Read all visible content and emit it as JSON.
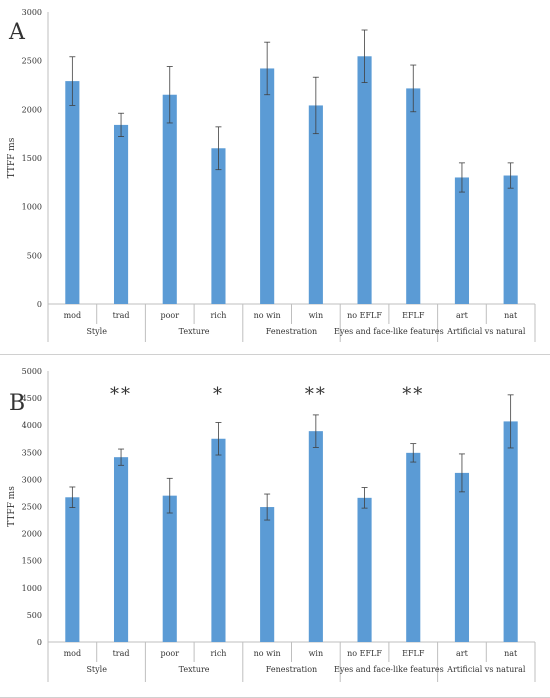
{
  "chart_data": [
    {
      "panel_label": "A",
      "type": "bar",
      "ylabel": "TTFF ms",
      "ylim": [
        0,
        3000
      ],
      "yticks": [
        0,
        500,
        1000,
        1500,
        2000,
        2500,
        3000
      ],
      "categories": [
        "mod",
        "trad",
        "poor",
        "rich",
        "no win",
        "win",
        "no EFLF",
        "EFLF",
        "art",
        "nat"
      ],
      "groups": [
        "Style",
        "Texture",
        "Fenestration",
        "Eyes and face-like features",
        "Artificial vs natural"
      ],
      "values": [
        2290,
        1840,
        2150,
        1600,
        2420,
        2040,
        2545,
        2215,
        1300,
        1320
      ],
      "errors": [
        250,
        120,
        290,
        220,
        270,
        290,
        270,
        240,
        150,
        130
      ],
      "annotations": [
        "",
        "",
        "",
        "",
        "",
        "",
        "",
        "",
        "",
        ""
      ],
      "bar_color": "#5b9bd5",
      "grid": false
    },
    {
      "panel_label": "B",
      "type": "bar",
      "ylabel": "TTFF ms",
      "ylim": [
        0,
        5000
      ],
      "yticks": [
        0,
        500,
        1000,
        1500,
        2000,
        2500,
        3000,
        3500,
        4000,
        4500,
        5000
      ],
      "categories": [
        "mod",
        "trad",
        "poor",
        "rich",
        "no win",
        "win",
        "no EFLF",
        "EFLF",
        "art",
        "nat"
      ],
      "groups": [
        "Style",
        "Texture",
        "Fenestration",
        "Eyes and face-like features",
        "Artificial vs natural"
      ],
      "values": [
        2670,
        3410,
        2700,
        3750,
        2490,
        3890,
        2660,
        3490,
        3120,
        4070
      ],
      "errors": [
        190,
        150,
        320,
        300,
        240,
        300,
        190,
        170,
        350,
        490
      ],
      "annotations": [
        "",
        "**",
        "",
        "*",
        "",
        "**",
        "",
        "**",
        "",
        ""
      ],
      "bar_color": "#5b9bd5",
      "grid": false
    }
  ]
}
